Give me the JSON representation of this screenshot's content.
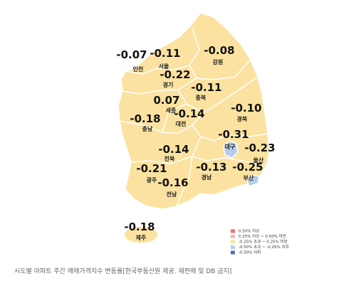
{
  "regions": [
    {
      "name": "인천",
      "value": "-0.07"
    },
    {
      "name": "서울",
      "value": "-0.11"
    },
    {
      "name": "강원",
      "value": "-0.08"
    },
    {
      "name": "경기",
      "value": "-0.22"
    },
    {
      "name": "충북",
      "value": "-0.11"
    },
    {
      "name": "세종",
      "value": "0.07"
    },
    {
      "name": "대전",
      "value": "-0.14"
    },
    {
      "name": "충남",
      "value": "-0.18"
    },
    {
      "name": "경북",
      "value": "-0.10"
    },
    {
      "name": "대구",
      "value": "-0.31"
    },
    {
      "name": "울산",
      "value": "-0.23"
    },
    {
      "name": "전북",
      "value": "-0.14"
    },
    {
      "name": "경남",
      "value": "-0.13"
    },
    {
      "name": "부산",
      "value": "-0.25"
    },
    {
      "name": "광주",
      "value": "-0.21"
    },
    {
      "name": "전남",
      "value": "-0.16"
    },
    {
      "name": "제주",
      "value": "-0.18"
    }
  ],
  "legend": [
    "0.50% 이상",
    "0.25% 이상 ~ 0.50% 미만",
    "-0.25% 초과 ~ 0.25% 미만",
    "-0.50% 초과 ~ -0.25% 이하",
    "-0.50% 이하"
  ],
  "caption": "시도별 아파트 주간 매매가격지수 변동률[한국부동산원 제공. 재판매 및 DB 금지]"
}
